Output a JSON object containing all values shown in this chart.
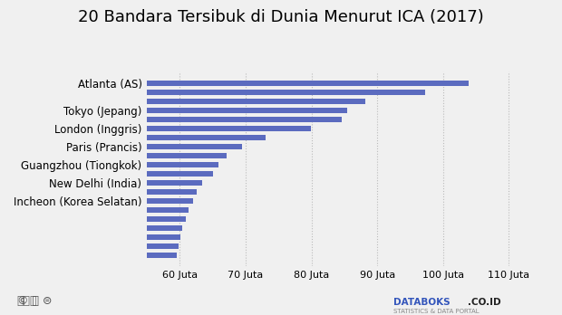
{
  "title": "20 Bandara Tersibuk di Dunia Menurut ICA (2017)",
  "bar_color": "#5b6bbf",
  "bg_color": "#f0f0f0",
  "xlim": [
    55000000,
    116000000
  ],
  "xticks": [
    60000000,
    70000000,
    80000000,
    90000000,
    100000000,
    110000000
  ],
  "xtick_labels": [
    "60 Juta",
    "70 Juta",
    "80 Juta",
    "90 Juta",
    "100 Juta",
    "110 Juta"
  ],
  "bars": [
    {
      "label": "Atlanta (AS)",
      "value": 103902992
    },
    {
      "label": "",
      "value": 97252052
    },
    {
      "label": "",
      "value": 88242099
    },
    {
      "label": "Tokyo (Jepang)",
      "value": 85408975
    },
    {
      "label": "",
      "value": 84557968
    },
    {
      "label": "London (Inggris)",
      "value": 79914919
    },
    {
      "label": "",
      "value": 73028599
    },
    {
      "label": "Paris (Prancis)",
      "value": 69471442
    },
    {
      "label": "",
      "value": 67092456
    },
    {
      "label": "Guangzhou (Tiongkok)",
      "value": 65872686
    },
    {
      "label": "",
      "value": 65088656
    },
    {
      "label": "New Delhi (India)",
      "value": 63450231
    },
    {
      "label": "",
      "value": 62500000
    },
    {
      "label": "Incheon (Korea Selatan)",
      "value": 62082029
    },
    {
      "label": "",
      "value": 61379819
    },
    {
      "label": "",
      "value": 60859894
    },
    {
      "label": "",
      "value": 60388424
    },
    {
      "label": "",
      "value": 60100000
    },
    {
      "label": "",
      "value": 59800000
    },
    {
      "label": "",
      "value": 59500000
    }
  ],
  "title_fontsize": 13,
  "label_fontsize": 8.5,
  "tick_fontsize": 8,
  "bar_height": 0.55
}
